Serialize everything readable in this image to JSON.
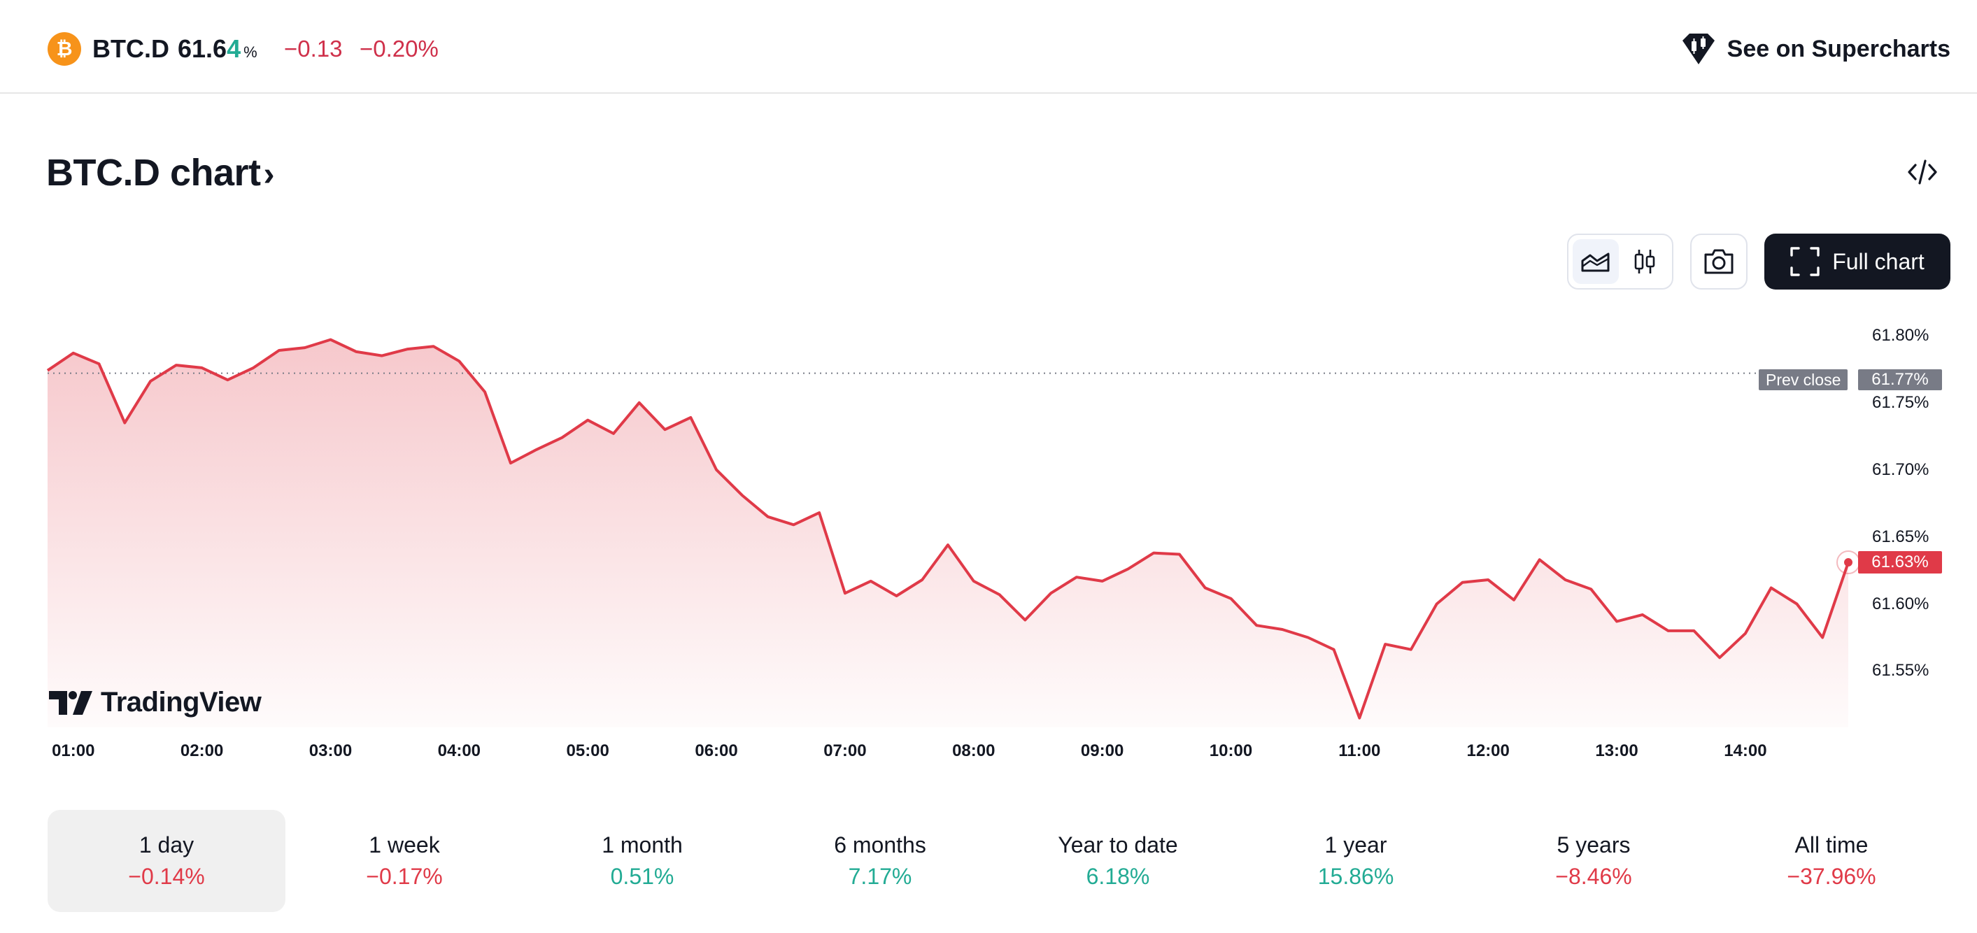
{
  "header": {
    "logo_glyph": "₿",
    "symbol": "BTC.D",
    "price_main": "61.6",
    "price_tick": "4",
    "price_unit": "%",
    "change_abs": "−0.13",
    "change_pct": "−0.20%",
    "supercharts_label": "See on Supercharts"
  },
  "title": {
    "text": "BTC.D chart",
    "chevron": "›"
  },
  "toolbar": {
    "full_chart_label": "Full chart",
    "chart_styles": [
      "area-chart-icon",
      "candles-icon"
    ],
    "active_style": "area-chart-icon"
  },
  "chart_data": {
    "type": "area",
    "x_ticks": [
      "01:00",
      "02:00",
      "03:00",
      "04:00",
      "05:00",
      "06:00",
      "07:00",
      "08:00",
      "09:00",
      "10:00",
      "11:00",
      "12:00",
      "13:00",
      "14:00"
    ],
    "y_ticks": [
      "61.80%",
      "61.75%",
      "61.70%",
      "61.65%",
      "61.60%",
      "61.55%"
    ],
    "ylim": [
      61.508,
      61.826
    ],
    "prev_close": {
      "label": "Prev close",
      "value": "61.77%",
      "y": 61.772
    },
    "last_value": {
      "label": "61.63%",
      "y": 61.631
    },
    "series": [
      {
        "x": [
          "00:48",
          "01:00",
          "01:12",
          "01:24",
          "01:36",
          "01:48",
          "02:00",
          "02:12",
          "02:24",
          "02:36",
          "02:48",
          "03:00",
          "03:12",
          "03:24",
          "03:36",
          "03:48",
          "04:00",
          "04:12",
          "04:24",
          "04:36",
          "04:48",
          "05:00",
          "05:12",
          "05:24",
          "05:36",
          "05:48",
          "06:00",
          "06:12",
          "06:24",
          "06:36",
          "06:48",
          "07:00",
          "07:12",
          "07:24",
          "07:36",
          "07:48",
          "08:00",
          "08:12",
          "08:24",
          "08:36",
          "08:48",
          "09:00",
          "09:12",
          "09:24",
          "09:36",
          "09:48",
          "10:00",
          "10:12",
          "10:24",
          "10:36",
          "10:48",
          "11:00",
          "11:12",
          "11:24",
          "11:36",
          "11:48",
          "12:00",
          "12:12",
          "12:24",
          "12:36",
          "12:48",
          "13:00",
          "13:12",
          "13:24",
          "13:36",
          "13:48",
          "14:00",
          "14:12",
          "14:24",
          "14:36",
          "14:48"
        ],
        "y": [
          61.774,
          61.787,
          61.779,
          61.735,
          61.766,
          61.778,
          61.776,
          61.767,
          61.776,
          61.789,
          61.791,
          61.797,
          61.788,
          61.785,
          61.79,
          61.792,
          61.781,
          61.758,
          61.705,
          61.715,
          61.724,
          61.737,
          61.727,
          61.75,
          61.73,
          61.739,
          61.7,
          61.681,
          61.665,
          61.659,
          61.668,
          61.608,
          61.617,
          61.606,
          61.618,
          61.644,
          61.617,
          61.607,
          61.588,
          61.608,
          61.62,
          61.617,
          61.626,
          61.638,
          61.637,
          61.612,
          61.604,
          61.584,
          61.581,
          61.575,
          61.566,
          61.515,
          61.57,
          61.566,
          61.6,
          61.616,
          61.618,
          61.603,
          61.633,
          61.618,
          61.611,
          61.587,
          61.592,
          61.58,
          61.58,
          61.56,
          61.578,
          61.612,
          61.6,
          61.575,
          61.631
        ]
      }
    ]
  },
  "branding": {
    "tv_name": "TradingView"
  },
  "periods": [
    {
      "label": "1 day",
      "value": "−0.14%",
      "dir": "neg",
      "active": true
    },
    {
      "label": "1 week",
      "value": "−0.17%",
      "dir": "neg",
      "active": false
    },
    {
      "label": "1 month",
      "value": "0.51%",
      "dir": "pos",
      "active": false
    },
    {
      "label": "6 months",
      "value": "7.17%",
      "dir": "pos",
      "active": false
    },
    {
      "label": "Year to date",
      "value": "6.18%",
      "dir": "pos",
      "active": false
    },
    {
      "label": "1 year",
      "value": "15.86%",
      "dir": "pos",
      "active": false
    },
    {
      "label": "5 years",
      "value": "−8.46%",
      "dir": "neg",
      "active": false
    },
    {
      "label": "All time",
      "value": "−37.96%",
      "dir": "neg",
      "active": false
    }
  ],
  "colors": {
    "line": "#e03a48",
    "positive": "#22ab94",
    "negative": "#e03a48",
    "brand_btc": "#f7931a"
  }
}
